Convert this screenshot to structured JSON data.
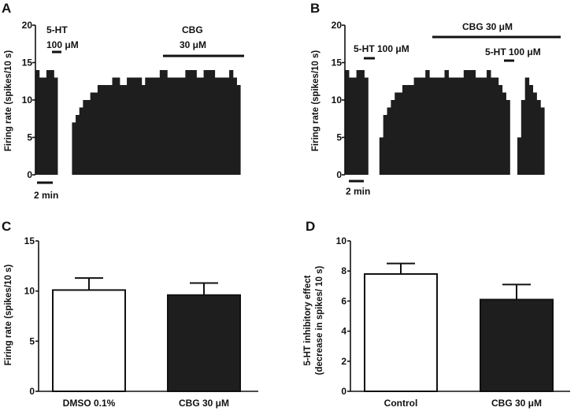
{
  "chart_data": [
    {
      "panel": "A",
      "type": "bar",
      "ylabel": "Firing rate (spikes/10 s)",
      "ylim": [
        0,
        20
      ],
      "yticks": [
        0,
        5,
        10,
        15,
        20
      ],
      "scale_bar_label": "2 min",
      "annotations": [
        {
          "line1": "5-HT",
          "line2": "100 μM"
        },
        {
          "line1": "CBG",
          "line2": "30 μM"
        }
      ],
      "values": [
        14,
        13,
        13,
        14,
        14,
        13,
        0,
        0,
        0,
        0,
        7,
        8,
        9,
        10,
        10,
        11,
        11,
        12,
        12,
        12,
        12,
        13,
        13,
        12,
        12,
        13,
        13,
        13,
        13,
        12,
        13,
        13,
        13,
        13,
        14,
        14,
        13,
        13,
        13,
        13,
        13,
        14,
        14,
        14,
        13,
        13,
        14,
        14,
        14,
        13,
        13,
        13,
        13,
        14,
        13,
        12
      ]
    },
    {
      "panel": "B",
      "type": "bar",
      "ylabel": "Firing rate (spikes/10 s)",
      "ylim": [
        0,
        20
      ],
      "yticks": [
        0,
        5,
        10,
        15,
        20
      ],
      "scale_bar_label": "2 min",
      "annotations": [
        {
          "line1": "5-HT 100 μM"
        },
        {
          "line1": "CBG 30 μM"
        },
        {
          "line1": "5-HT 100 μM"
        }
      ],
      "values": [
        14,
        13,
        13,
        14,
        14,
        13,
        0,
        0,
        0,
        5,
        8,
        9,
        10,
        11,
        11,
        12,
        12,
        12,
        13,
        13,
        13,
        14,
        13,
        13,
        13,
        13,
        14,
        13,
        13,
        13,
        13,
        14,
        14,
        14,
        13,
        13,
        13,
        14,
        13,
        13,
        12,
        11,
        10,
        0,
        0,
        5,
        10,
        13,
        12,
        11,
        10,
        9
      ]
    },
    {
      "panel": "C",
      "type": "bar",
      "ylabel": "Firing rate (spikes/10 s)",
      "ylim": [
        0,
        15
      ],
      "yticks": [
        0,
        5,
        10,
        15
      ],
      "categories": [
        "DMSO 0.1%",
        "CBG 30 μM"
      ],
      "values": [
        10.1,
        9.6
      ],
      "errors": [
        1.2,
        1.2
      ],
      "colors": [
        "#ffffff",
        "#1e1e1e"
      ]
    },
    {
      "panel": "D",
      "type": "bar",
      "ylabel": "5-HT inhibitory effect",
      "ylabel2": "(decrease in spikes/ 10 s)",
      "ylim": [
        0,
        10
      ],
      "yticks": [
        0,
        2,
        4,
        6,
        8,
        10
      ],
      "categories": [
        "Control",
        "CBG 30 μM"
      ],
      "values": [
        7.8,
        6.1
      ],
      "errors": [
        0.7,
        1.0
      ],
      "colors": [
        "#ffffff",
        "#1e1e1e"
      ]
    }
  ]
}
